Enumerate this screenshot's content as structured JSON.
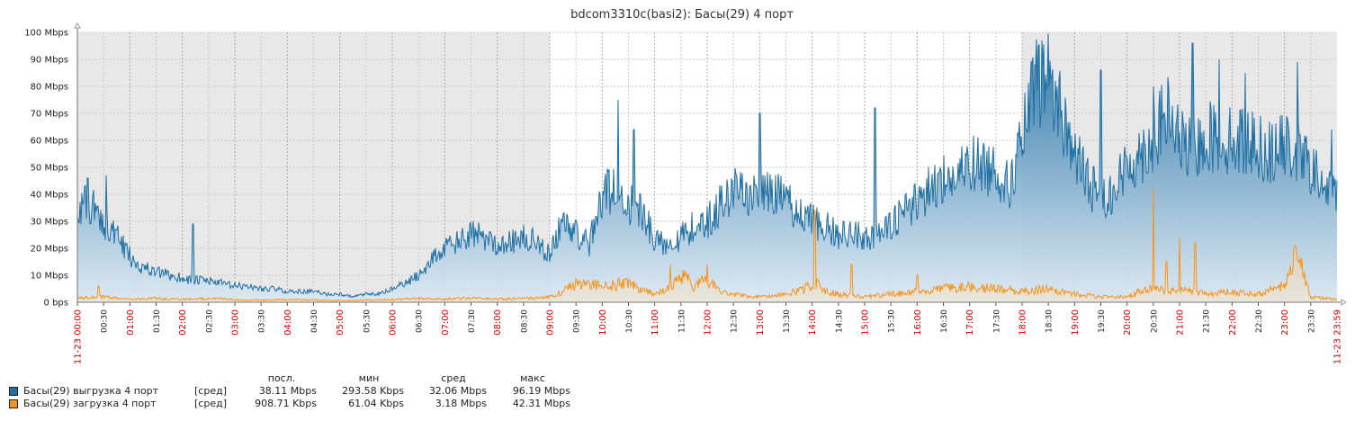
{
  "chart_data": {
    "type": "area",
    "title": "bdcom3310c(basi2): Басы(29) 4 порт",
    "y_ticks": [
      "0 bps",
      "10 Mbps",
      "20 Mbps",
      "30 Mbps",
      "40 Mbps",
      "50 Mbps",
      "60 Mbps",
      "70 Mbps",
      "80 Mbps",
      "90 Mbps",
      "100 Mbps"
    ],
    "ylim_mbps": [
      0,
      100
    ],
    "x_range_hours": [
      0,
      24
    ],
    "x_ticks": [
      "00:00",
      "00:30",
      "01:00",
      "01:30",
      "02:00",
      "02:30",
      "03:00",
      "03:30",
      "04:00",
      "04:30",
      "05:00",
      "05:30",
      "06:00",
      "06:30",
      "07:00",
      "07:30",
      "08:00",
      "08:30",
      "09:00",
      "09:30",
      "10:00",
      "10:30",
      "11:00",
      "11:30",
      "12:00",
      "12:30",
      "13:00",
      "13:30",
      "14:00",
      "14:30",
      "15:00",
      "15:30",
      "16:00",
      "16:30",
      "17:00",
      "17:30",
      "18:00",
      "18:30",
      "19:00",
      "19:30",
      "20:00",
      "20:30",
      "21:00",
      "21:30",
      "22:00",
      "22:30",
      "23:00",
      "23:30"
    ],
    "x_start_label": "11-23 00:00",
    "x_end_label": "11-23 23:59",
    "shaded_periods_hours": [
      [
        0,
        9
      ],
      [
        18,
        24
      ]
    ],
    "grid": true,
    "series": [
      {
        "name": "Басы(29)  выгрузка 4 порт",
        "color": "#1f6fa3",
        "hours": [
          0,
          0.25,
          0.5,
          0.75,
          1,
          1.25,
          1.5,
          1.75,
          2,
          2.25,
          2.5,
          2.75,
          3,
          3.25,
          3.5,
          3.75,
          4,
          4.25,
          4.5,
          4.75,
          5,
          5.25,
          5.5,
          5.75,
          6,
          6.25,
          6.5,
          6.75,
          7,
          7.25,
          7.5,
          7.75,
          8,
          8.25,
          8.5,
          8.75,
          9,
          9.25,
          9.5,
          9.75,
          10,
          10.25,
          10.5,
          10.75,
          11,
          11.25,
          11.5,
          11.75,
          12,
          12.25,
          12.5,
          12.75,
          13,
          13.25,
          13.5,
          13.75,
          14,
          14.25,
          14.5,
          14.75,
          15,
          15.25,
          15.5,
          15.75,
          16,
          16.25,
          16.5,
          16.75,
          17,
          17.25,
          17.5,
          17.75,
          18,
          18.25,
          18.5,
          18.75,
          19,
          19.25,
          19.5,
          19.75,
          20,
          20.25,
          20.5,
          20.75,
          21,
          21.25,
          21.5,
          21.75,
          22,
          22.25,
          22.5,
          22.75,
          23,
          23.25,
          23.5,
          23.75,
          24
        ],
        "mbps": [
          35,
          36,
          30,
          24,
          17,
          13,
          11,
          10,
          9,
          8,
          8,
          7,
          6,
          6,
          5,
          5,
          4,
          4,
          4,
          3,
          3,
          2,
          3,
          3,
          5,
          7,
          10,
          16,
          20,
          22,
          25,
          24,
          22,
          22,
          24,
          22,
          18,
          30,
          26,
          21,
          40,
          42,
          36,
          34,
          23,
          22,
          24,
          28,
          30,
          36,
          42,
          40,
          40,
          40,
          38,
          33,
          30,
          28,
          25,
          26,
          24,
          25,
          28,
          33,
          38,
          42,
          46,
          45,
          52,
          50,
          50,
          42,
          60,
          80,
          85,
          70,
          55,
          45,
          38,
          42,
          50,
          55,
          60,
          70,
          60,
          55,
          62,
          60,
          60,
          60,
          58,
          55,
          58,
          55,
          50,
          42,
          40,
          38,
          38
        ],
        "peaks": [
          [
            0.2,
            46
          ],
          [
            0.55,
            47
          ],
          [
            2.2,
            29
          ],
          [
            10.3,
            75
          ],
          [
            10.6,
            64
          ],
          [
            13.0,
            70
          ],
          [
            15.2,
            72
          ],
          [
            18.25,
            88
          ],
          [
            19.5,
            86
          ],
          [
            20.5,
            80
          ],
          [
            21.25,
            96
          ],
          [
            21.75,
            90
          ],
          [
            22.25,
            85
          ],
          [
            23.25,
            89
          ],
          [
            23.9,
            64
          ]
        ]
      },
      {
        "name": "Басы(29) загрузка 4 порт",
        "color": "#f7941d",
        "hours": [
          0,
          0.5,
          1,
          1.5,
          2,
          2.5,
          3,
          3.5,
          4,
          4.5,
          5,
          5.5,
          6,
          6.5,
          7,
          7.5,
          8,
          8.5,
          9,
          9.25,
          9.5,
          10,
          10.5,
          11,
          11.25,
          11.5,
          11.75,
          12,
          12.25,
          12.5,
          13,
          13.5,
          14,
          14.1,
          14.25,
          14.5,
          15,
          15.5,
          16,
          16.5,
          17,
          17.5,
          18,
          18.5,
          19,
          19.5,
          20,
          20.25,
          20.5,
          20.75,
          21,
          21.5,
          22,
          22.5,
          23,
          23.1,
          23.25,
          23.5,
          24
        ],
        "mbps": [
          1.5,
          2,
          1,
          1.5,
          1,
          1.5,
          1,
          0.8,
          1,
          0.8,
          0.6,
          0.8,
          1,
          1.5,
          1.2,
          1.5,
          1.2,
          1.5,
          2,
          4,
          7,
          6,
          7,
          3,
          5,
          10,
          6,
          9,
          4,
          3,
          2,
          3,
          6,
          7,
          4,
          3,
          2,
          3,
          4,
          5,
          6,
          5,
          4,
          5,
          3,
          2,
          2,
          4,
          5,
          4,
          5,
          3,
          4,
          3,
          6,
          11,
          18,
          2,
          1
        ],
        "peaks": [
          [
            0.4,
            6
          ],
          [
            9.5,
            9
          ],
          [
            11.3,
            14
          ],
          [
            12.0,
            14
          ],
          [
            14.05,
            34
          ],
          [
            14.75,
            14
          ],
          [
            16.0,
            10
          ],
          [
            20.5,
            42
          ],
          [
            20.75,
            15
          ],
          [
            21.0,
            24
          ],
          [
            21.3,
            22
          ],
          [
            23.2,
            21
          ]
        ]
      }
    ],
    "summary_headers": [
      "посл.",
      "мин",
      "сред",
      "макс"
    ],
    "summary": [
      {
        "name": "Басы(29)  выгрузка 4 порт",
        "func": "[сред]",
        "last": "38.11 Mbps",
        "min": "293.58 Kbps",
        "avg": "32.06 Mbps",
        "max": "96.19 Mbps"
      },
      {
        "name": "Басы(29) загрузка 4 порт",
        "func": "[сред]",
        "last": "908.71 Kbps",
        "min": "61.04 Kbps",
        "avg": "3.18 Mbps",
        "max": "42.31 Mbps"
      }
    ],
    "colors": {
      "upload": "#1f6fa3",
      "download": "#f7941d",
      "shade": "#e8e8e8",
      "red_tick": "#cc0000"
    }
  }
}
